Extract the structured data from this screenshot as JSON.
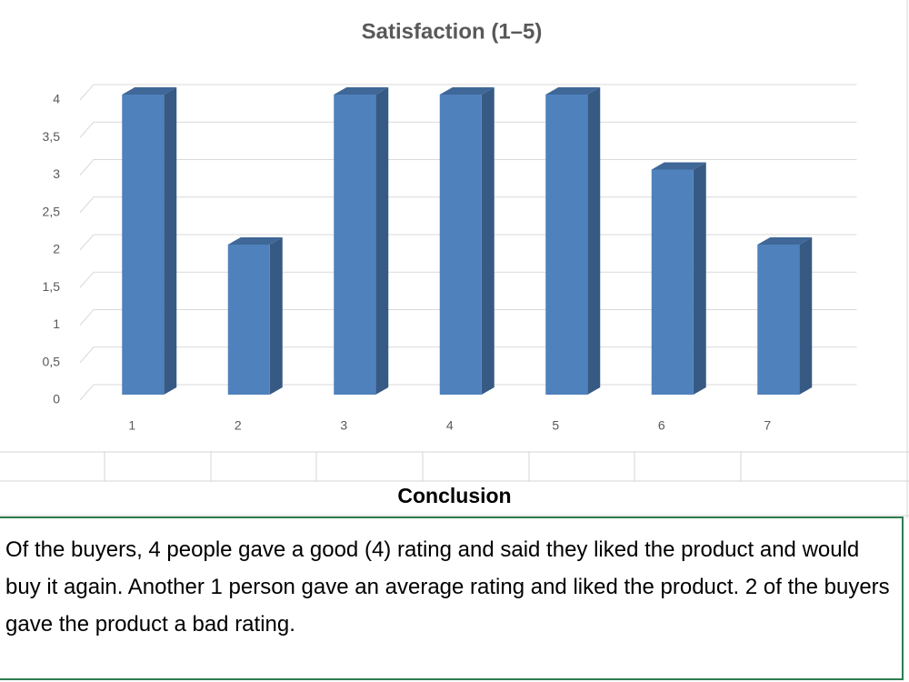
{
  "chart_data": {
    "type": "bar",
    "title": "Satisfaction (1–5)",
    "categories": [
      "1",
      "2",
      "3",
      "4",
      "5",
      "6",
      "7"
    ],
    "values": [
      4,
      2,
      4,
      4,
      4,
      3,
      2
    ],
    "color": "#4f81bd",
    "ylim": [
      0,
      4
    ],
    "yticks": [
      0,
      {
        "value": 0.5,
        "label": "0,5"
      },
      1,
      {
        "value": 1.5,
        "label": "1,5"
      },
      2,
      {
        "value": 2.5,
        "label": "2,5"
      },
      3,
      {
        "value": 3.5,
        "label": "3,5"
      },
      4
    ],
    "grid": true
  },
  "conclusion": {
    "heading": "Conclusion",
    "text": "Of the buyers, 4 people gave a good (4) rating and said they liked the product and would buy it again. Another 1 person gave an average rating and liked the product. 2 of the buyers gave the product a bad rating."
  }
}
